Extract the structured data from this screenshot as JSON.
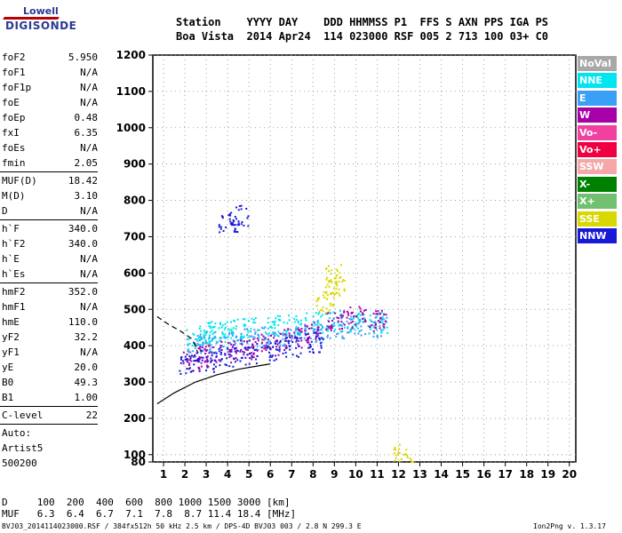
{
  "logo": {
    "top": "Lowell",
    "bottom": "DIGISONDE"
  },
  "header": {
    "line1": "Station    YYYY DAY    DDD HHMMSS P1  FFS S AXN PPS IGA PS",
    "line2": "Boa Vista  2014 Apr24  114 023000 RSF 005 2 713 100 03+ C0"
  },
  "params": [
    {
      "label": "foF2",
      "value": "5.950"
    },
    {
      "label": "foF1",
      "value": "N/A"
    },
    {
      "label": "foF1p",
      "value": "N/A"
    },
    {
      "label": "foE",
      "value": "N/A"
    },
    {
      "label": "foEp",
      "value": "0.48"
    },
    {
      "label": "fxI",
      "value": "6.35"
    },
    {
      "label": "foEs",
      "value": "N/A"
    },
    {
      "label": "fmin",
      "value": "2.05"
    },
    {
      "label": "MUF(D)",
      "value": "18.42"
    },
    {
      "label": "M(D)",
      "value": "3.10"
    },
    {
      "label": "D",
      "value": "N/A"
    },
    {
      "label": "h`F",
      "value": "340.0"
    },
    {
      "label": "h`F2",
      "value": "340.0"
    },
    {
      "label": "h`E",
      "value": "N/A"
    },
    {
      "label": "h`Es",
      "value": "N/A"
    },
    {
      "label": "hmF2",
      "value": "352.0"
    },
    {
      "label": "hmF1",
      "value": "N/A"
    },
    {
      "label": "hmE",
      "value": "110.0"
    },
    {
      "label": "yF2",
      "value": "32.2"
    },
    {
      "label": "yF1",
      "value": "N/A"
    },
    {
      "label": "yE",
      "value": "20.0"
    },
    {
      "label": "B0",
      "value": "49.3"
    },
    {
      "label": "B1",
      "value": "1.00"
    },
    {
      "label": "C-level",
      "value": "22"
    }
  ],
  "auto": {
    "label": "Auto:",
    "artist": "Artist5",
    "code": "500200"
  },
  "muf_table": {
    "d_line": "D     100  200  400  600  800 1000 1500 3000 [km]",
    "muf_line": "MUF   6.3  6.4  6.7  7.1  7.8  8.7 11.4 18.4 [MHz]"
  },
  "footer": {
    "left": "BVJ03_2014114023000.RSF / 384fx512h 50 kHz 2.5 km / DPS-4D BVJ03 003 / 2.8 N 299.3 E",
    "right": "Ion2Png v. 1.3.17"
  },
  "legend": [
    {
      "name": "NoVal",
      "color": "#a8a8a8"
    },
    {
      "name": "NNE",
      "color": "#00e5f0"
    },
    {
      "name": "E",
      "color": "#3aa0f5"
    },
    {
      "name": "W",
      "color": "#a800a8"
    },
    {
      "name": "Vo-",
      "color": "#f040a0"
    },
    {
      "name": "Vo+",
      "color": "#f00040"
    },
    {
      "name": "SSW",
      "color": "#f4a8a8"
    },
    {
      "name": "X-",
      "color": "#008000"
    },
    {
      "name": "X+",
      "color": "#70c070"
    },
    {
      "name": "SSE",
      "color": "#d8d800"
    },
    {
      "name": "NNW",
      "color": "#1818d8"
    }
  ],
  "chart_data": {
    "type": "scatter",
    "xlim": [
      0.5,
      20.3
    ],
    "ylim": [
      80,
      1200
    ],
    "x_ticks": [
      "1",
      "2",
      "3",
      "4",
      "5",
      "6",
      "7",
      "8",
      "9",
      "10",
      "11",
      "12",
      "13",
      "14",
      "15",
      "16",
      "17",
      "18",
      "19",
      "20"
    ],
    "y_ticks": [
      "80",
      "100",
      "200",
      "300",
      "400",
      "500",
      "600",
      "700",
      "800",
      "900",
      "1000",
      "1100",
      "1200"
    ],
    "grid": true,
    "series": [
      {
        "name": "NNE",
        "color": "#00e5f0",
        "points": [
          [
            2.5,
            420
          ],
          [
            3,
            430
          ],
          [
            3.5,
            440
          ],
          [
            4,
            445
          ],
          [
            5,
            450
          ],
          [
            6,
            455
          ],
          [
            7,
            460
          ],
          [
            8,
            465
          ],
          [
            9,
            470
          ],
          [
            10,
            470
          ],
          [
            11,
            465
          ]
        ]
      },
      {
        "name": "E",
        "color": "#3aa0f5",
        "points": [
          [
            2.5,
            400
          ],
          [
            3,
            410
          ],
          [
            4,
            415
          ],
          [
            5,
            420
          ],
          [
            6,
            425
          ],
          [
            7,
            430
          ],
          [
            8,
            440
          ],
          [
            9,
            450
          ],
          [
            10,
            455
          ],
          [
            11,
            455
          ]
        ]
      },
      {
        "name": "W",
        "color": "#a800a8",
        "points": [
          [
            2.3,
            360
          ],
          [
            3,
            375
          ],
          [
            4,
            385
          ],
          [
            5,
            395
          ],
          [
            6,
            405
          ],
          [
            7,
            420
          ],
          [
            8,
            440
          ],
          [
            9,
            470
          ],
          [
            10,
            480
          ],
          [
            11,
            470
          ]
        ]
      },
      {
        "name": "NNW",
        "color": "#1818d8",
        "points": [
          [
            2.1,
            350
          ],
          [
            3,
            360
          ],
          [
            4,
            370
          ],
          [
            5,
            380
          ],
          [
            6,
            390
          ],
          [
            7,
            400
          ],
          [
            8,
            410
          ],
          [
            4.5,
            760
          ],
          [
            4,
            740
          ]
        ]
      },
      {
        "name": "SSE",
        "color": "#d8d800",
        "points": [
          [
            8.5,
            520
          ],
          [
            9,
            600
          ],
          [
            9,
            560
          ],
          [
            12.2,
            100
          ]
        ]
      }
    ],
    "trace_curves": [
      {
        "name": "X-mode trace",
        "points": [
          [
            0.7,
            240
          ],
          [
            1.5,
            270
          ],
          [
            2.5,
            300
          ],
          [
            3.5,
            320
          ],
          [
            4.5,
            335
          ],
          [
            5.5,
            345
          ],
          [
            6,
            350
          ]
        ]
      },
      {
        "name": "O-mode trace",
        "points": [
          [
            0.7,
            480
          ],
          [
            1.2,
            460
          ],
          [
            1.8,
            440
          ],
          [
            2.3,
            420
          ],
          [
            2.5,
            400
          ],
          [
            2.6,
            380
          ]
        ]
      }
    ]
  }
}
